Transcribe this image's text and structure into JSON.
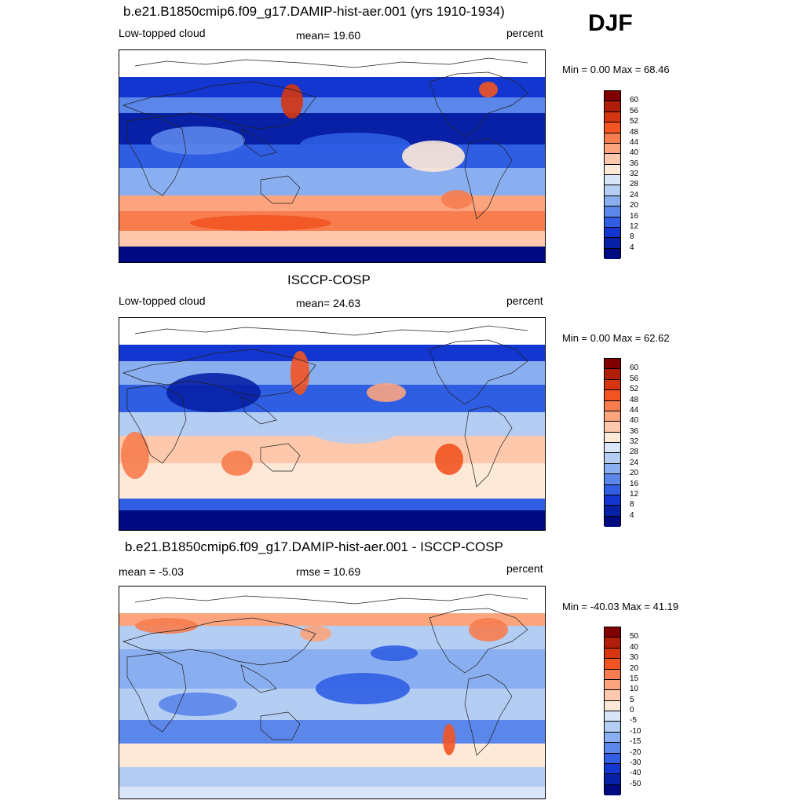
{
  "season": "DJF",
  "panels": [
    {
      "title": "b.e21.B1850cmip6.f09_g17.DAMIP-hist-aer.001 (yrs 1910-1934)",
      "left_label": "Low-topped cloud",
      "center_label": "mean=  19.60",
      "right_label": "percent",
      "minmax": "Min =   0.00 Max =  68.46",
      "colorbar_labels": [
        "60",
        "56",
        "52",
        "48",
        "44",
        "40",
        "36",
        "32",
        "28",
        "24",
        "20",
        "16",
        "12",
        "8",
        "4"
      ]
    },
    {
      "title": "ISCCP-COSP",
      "left_label": "Low-topped cloud",
      "center_label": "mean=  24.63",
      "right_label": "percent",
      "minmax": "Min =   0.00 Max =  62.62",
      "colorbar_labels": [
        "60",
        "56",
        "52",
        "48",
        "44",
        "40",
        "36",
        "32",
        "28",
        "24",
        "20",
        "16",
        "12",
        "8",
        "4"
      ]
    },
    {
      "title": "b.e21.B1850cmip6.f09_g17.DAMIP-hist-aer.001 - ISCCP-COSP",
      "left_label": "mean =  -5.03",
      "center_label": "rmse =  10.69",
      "right_label": "percent",
      "minmax": "Min = -40.03 Max =  41.19",
      "colorbar_labels": [
        "50",
        "40",
        "30",
        "20",
        "15",
        "10",
        "5",
        "0",
        "-5",
        "-10",
        "-15",
        "-20",
        "-30",
        "-40",
        "-50"
      ]
    }
  ],
  "colors": {
    "colorbar": [
      "#800000",
      "#b01e0a",
      "#d6360f",
      "#f25422",
      "#f77d4f",
      "#fba47e",
      "#fdc8ab",
      "#fde9d8",
      "#d8e6f8",
      "#b3cdf3",
      "#8aaff0",
      "#5b86ea",
      "#2f5ee3",
      "#1236cf",
      "#0720a5",
      "#000a80"
    ],
    "coast": "#202020",
    "missing": "#ffffff"
  }
}
